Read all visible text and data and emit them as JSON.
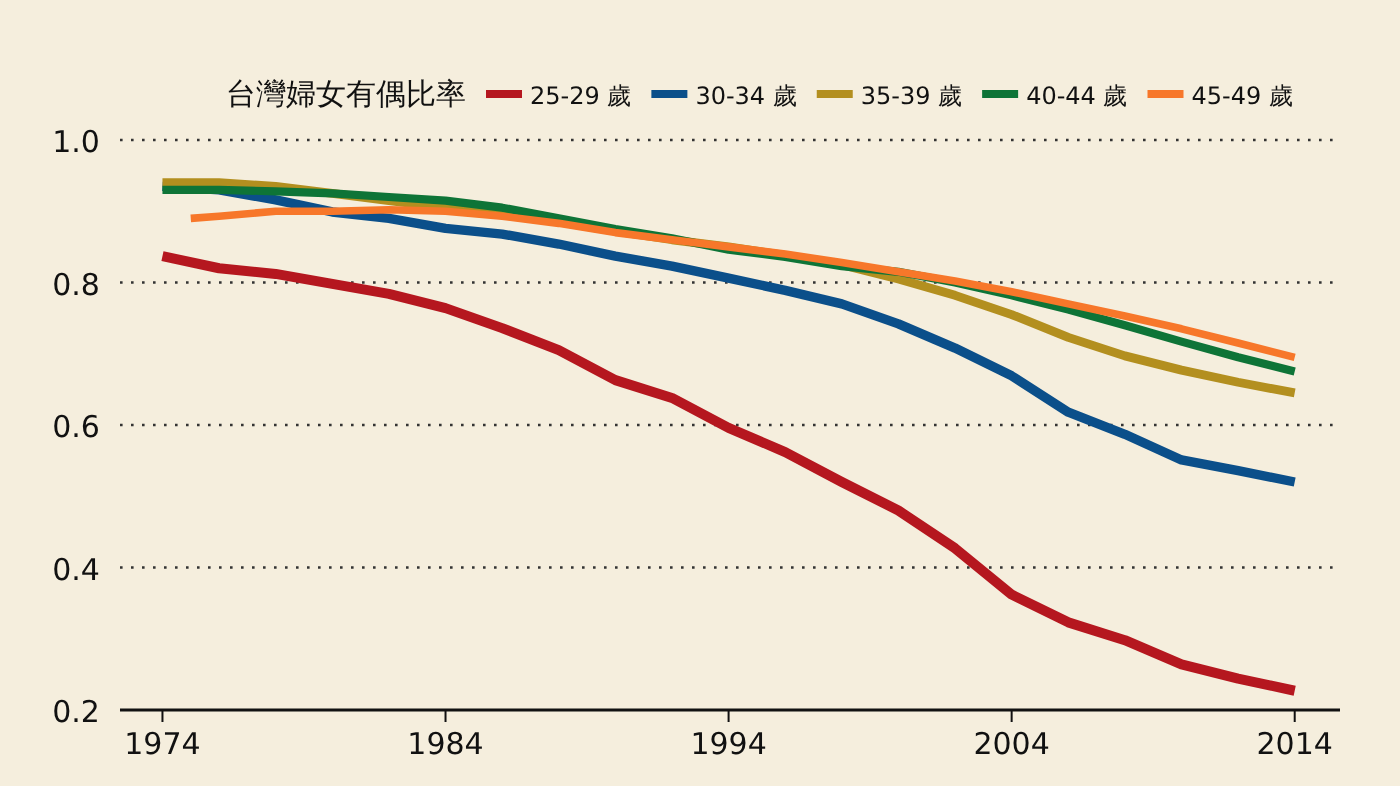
{
  "chart_data": {
    "type": "line",
    "title": "台灣婦女有偶比率",
    "legend": "top",
    "grid": "y",
    "line_style": "solid",
    "x": [
      1974,
      1976,
      1978,
      1980,
      1982,
      1984,
      1986,
      1988,
      1990,
      1992,
      1994,
      1996,
      1998,
      2000,
      2002,
      2004,
      2006,
      2008,
      2010,
      2012,
      2014
    ],
    "xlim": [
      1972.5,
      2015.6
    ],
    "xticks": [
      1974,
      1984,
      1994,
      2004,
      2014
    ],
    "ylim": [
      0.2,
      1.0
    ],
    "yticks": [
      0.2,
      0.4,
      0.6,
      0.8,
      {
        "value": 1.0,
        "label": "1.0"
      }
    ],
    "series": [
      {
        "name": "25-29 歲",
        "color": "#b5171f",
        "values": [
          0.837,
          0.82,
          0.812,
          0.798,
          0.784,
          0.764,
          0.736,
          0.705,
          0.663,
          0.638,
          0.596,
          0.562,
          0.52,
          0.48,
          0.427,
          0.362,
          0.323,
          0.298,
          0.264,
          0.244,
          0.227
        ]
      },
      {
        "name": "30-34 歲",
        "color": "#0b4f8a",
        "values": [
          0.935,
          0.93,
          0.916,
          0.899,
          0.89,
          0.876,
          0.868,
          0.854,
          0.837,
          0.823,
          0.806,
          0.789,
          0.77,
          0.742,
          0.708,
          0.669,
          0.618,
          0.587,
          0.551,
          0.536,
          0.52
        ]
      },
      {
        "name": "35-39 歲",
        "color": "#b38f1f",
        "values": [
          0.94,
          0.94,
          0.935,
          0.925,
          0.915,
          0.905,
          0.895,
          0.885,
          0.872,
          0.86,
          0.85,
          0.838,
          0.825,
          0.805,
          0.782,
          0.755,
          0.723,
          0.697,
          0.677,
          0.66,
          0.645
        ]
      },
      {
        "name": "40-44 歲",
        "color": "#0e7437",
        "values": [
          0.93,
          0.93,
          0.928,
          0.925,
          0.92,
          0.915,
          0.905,
          0.89,
          0.875,
          0.862,
          0.846,
          0.836,
          0.823,
          0.815,
          0.8,
          0.782,
          0.762,
          0.74,
          0.717,
          0.695,
          0.675
        ]
      },
      {
        "name": "45-49 歲",
        "color": "#f7772a",
        "x": [
          1975,
          1976,
          1978,
          1980,
          1982,
          1984,
          1986,
          1988,
          1990,
          1992,
          1994,
          1996,
          1998,
          2000,
          2002,
          2004,
          2006,
          2008,
          2010,
          2012,
          2014
        ],
        "values": [
          0.89,
          0.893,
          0.9,
          0.9,
          0.902,
          0.9,
          0.893,
          0.883,
          0.87,
          0.86,
          0.85,
          0.84,
          0.828,
          0.815,
          0.802,
          0.787,
          0.77,
          0.753,
          0.735,
          0.715,
          0.695
        ]
      }
    ]
  }
}
